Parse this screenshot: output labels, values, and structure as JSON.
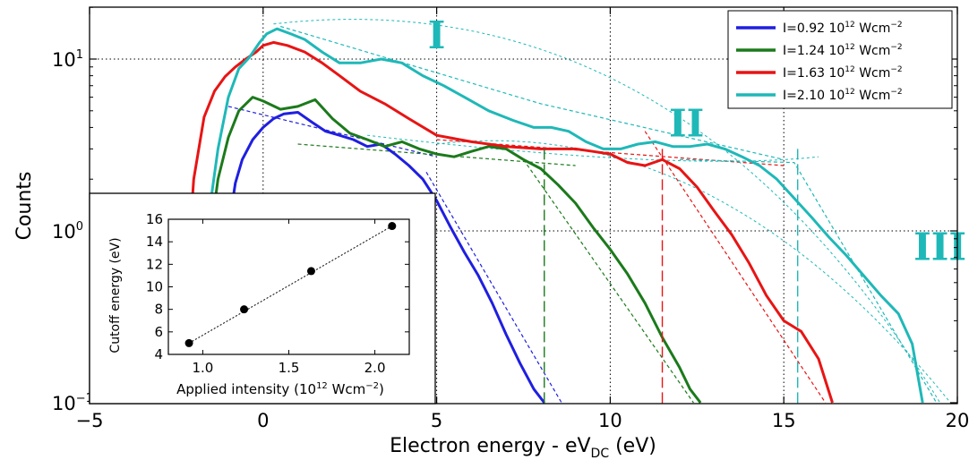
{
  "chart_data": [
    {
      "type": "line",
      "xlabel": "Electron energy - eV",
      "xlabel_sub": "DC",
      "xlabel_unit": " (eV)",
      "ylabel": "Counts",
      "xlim": [
        -5,
        20
      ],
      "ylim": [
        0.1,
        20
      ],
      "yscale": "log",
      "xticks": [
        -5,
        0,
        5,
        10,
        15,
        20
      ],
      "xtick_labels": [
        "−5",
        "0",
        "5",
        "10",
        "15",
        "20"
      ],
      "yticks": [
        {
          "base": "10",
          "exp": "−1",
          "value": 0.1
        },
        {
          "base": "10",
          "exp": "0",
          "value": 1
        },
        {
          "base": "10",
          "exp": "1",
          "value": 10
        }
      ],
      "grid": "dotted at x=0, 5, 10, 15 and y=1, 10",
      "legend_position": "top-right",
      "region_labels": [
        {
          "text": "I",
          "x": 5.0,
          "y": 14
        },
        {
          "text": "II",
          "x": 12.2,
          "y": 4.3
        },
        {
          "text": "III",
          "x": 19.5,
          "y": 0.82
        }
      ],
      "series": [
        {
          "name": "I=0.92 10",
          "name_exp": "12",
          "name_unit": " Wcm",
          "name_unit_exp": "−2",
          "color": "#1f1fe0",
          "x": [
            -1.1,
            -0.95,
            -0.8,
            -0.6,
            -0.3,
            0.0,
            0.3,
            0.6,
            1.0,
            1.4,
            1.8,
            2.2,
            2.6,
            3.0,
            3.4,
            3.8,
            4.2,
            4.6,
            5.0,
            5.4,
            5.8,
            6.2,
            6.6,
            7.0,
            7.4,
            7.8,
            8.1
          ],
          "y": [
            0.25,
            1.2,
            1.9,
            2.6,
            3.4,
            4.0,
            4.5,
            4.8,
            4.9,
            4.3,
            3.8,
            3.6,
            3.4,
            3.1,
            3.2,
            2.8,
            2.4,
            2.0,
            1.5,
            1.05,
            0.75,
            0.55,
            0.38,
            0.25,
            0.17,
            0.12,
            0.1
          ]
        },
        {
          "name": "I=1.24 10",
          "name_exp": "12",
          "name_unit": " Wcm",
          "name_unit_exp": "−2",
          "color": "#1b7a1b",
          "x": [
            -1.7,
            -1.5,
            -1.3,
            -1.0,
            -0.7,
            -0.3,
            0.0,
            0.5,
            1.0,
            1.5,
            2.0,
            2.5,
            3.0,
            3.5,
            4.0,
            4.5,
            5.0,
            5.5,
            6.0,
            6.5,
            7.0,
            7.5,
            8.0,
            8.5,
            9.0,
            9.5,
            10.0,
            10.5,
            11.0,
            11.5,
            12.0,
            12.3,
            12.6
          ],
          "y": [
            0.3,
            1.0,
            2.0,
            3.5,
            5.0,
            6.0,
            5.7,
            5.1,
            5.3,
            5.8,
            4.5,
            3.7,
            3.4,
            3.1,
            3.3,
            3.0,
            2.8,
            2.7,
            2.9,
            3.1,
            3.0,
            2.6,
            2.3,
            1.85,
            1.45,
            1.05,
            0.78,
            0.56,
            0.38,
            0.24,
            0.16,
            0.12,
            0.1
          ]
        },
        {
          "name": "I=1.63 10",
          "name_exp": "12",
          "name_unit": " Wcm",
          "name_unit_exp": "−2",
          "color": "#e81414",
          "x": [
            -2.2,
            -2.0,
            -1.7,
            -1.4,
            -1.1,
            -0.8,
            -0.5,
            -0.2,
            0.0,
            0.3,
            0.7,
            1.2,
            1.7,
            2.2,
            2.8,
            3.5,
            4.2,
            5.0,
            6.0,
            7.0,
            8.0,
            9.0,
            9.5,
            10.0,
            10.5,
            11.0,
            11.5,
            12.0,
            12.5,
            13.0,
            13.5,
            14.0,
            14.5,
            15.0,
            15.5,
            16.0,
            16.4
          ],
          "y": [
            0.5,
            2.0,
            4.6,
            6.5,
            7.9,
            9.0,
            10.0,
            11.0,
            12.0,
            12.5,
            12.0,
            11.0,
            9.5,
            8.0,
            6.5,
            5.5,
            4.5,
            3.6,
            3.3,
            3.1,
            3.0,
            3.0,
            2.9,
            2.8,
            2.5,
            2.4,
            2.6,
            2.3,
            1.8,
            1.3,
            0.95,
            0.65,
            0.42,
            0.3,
            0.26,
            0.18,
            0.1
          ]
        },
        {
          "name": "I=2.10 10",
          "name_exp": "12",
          "name_unit": " Wcm",
          "name_unit_exp": "−2",
          "color": "#1fb8b8",
          "x": [
            -1.8,
            -1.6,
            -1.3,
            -1.0,
            -0.7,
            -0.4,
            -0.1,
            0.1,
            0.4,
            0.8,
            1.2,
            1.7,
            2.2,
            2.8,
            3.4,
            4.0,
            4.6,
            5.2,
            5.8,
            6.5,
            7.2,
            7.8,
            8.3,
            8.8,
            9.3,
            9.8,
            10.3,
            10.8,
            11.3,
            11.8,
            12.3,
            12.8,
            13.3,
            13.8,
            14.3,
            14.8,
            15.3,
            15.8,
            16.3,
            16.8,
            17.3,
            17.8,
            18.3,
            18.7,
            19.0
          ],
          "y": [
            0.3,
            1.1,
            3.0,
            6.0,
            8.8,
            10.2,
            12.5,
            14.0,
            15.0,
            14.0,
            13.0,
            11.0,
            9.5,
            9.5,
            10.0,
            9.5,
            8.0,
            7.0,
            6.0,
            5.0,
            4.4,
            4.0,
            4.0,
            3.8,
            3.3,
            3.0,
            3.0,
            3.2,
            3.3,
            3.1,
            3.1,
            3.2,
            3.0,
            2.7,
            2.4,
            2.0,
            1.55,
            1.2,
            0.92,
            0.72,
            0.55,
            0.42,
            0.33,
            0.22,
            0.1
          ]
        }
      ],
      "cutoff_markers": [
        {
          "x": 8.1,
          "color": "#1b7a1b"
        },
        {
          "x": 11.5,
          "color": "#e81414"
        },
        {
          "x": 15.4,
          "color": "#1fb8b8"
        }
      ]
    },
    {
      "type": "scatter",
      "xlabel": "Applied intensity",
      "xlabel_unit": "(10",
      "xlabel_unit_exp": "12",
      "xlabel_unit_tail": " Wcm",
      "xlabel_unit_tail_exp": "−2",
      "xlabel_close": ")",
      "ylabel": "Cutoff energy (eV)",
      "xlim": [
        0.8,
        2.2
      ],
      "ylim": [
        4,
        16
      ],
      "xticks": [
        1.0,
        1.5,
        2.0
      ],
      "xtick_labels": [
        "1.0",
        "1.5",
        "2.0"
      ],
      "yticks": [
        4,
        6,
        8,
        10,
        12,
        14,
        16
      ],
      "ytick_labels": [
        "4",
        "6",
        "8",
        "10",
        "12",
        "14",
        "16"
      ],
      "points": {
        "x": [
          0.92,
          1.24,
          1.63,
          2.1
        ],
        "y": [
          5.0,
          8.0,
          11.4,
          15.4
        ]
      },
      "fit_line": {
        "x": [
          0.92,
          2.1
        ],
        "y": [
          5.0,
          15.4
        ]
      }
    }
  ]
}
